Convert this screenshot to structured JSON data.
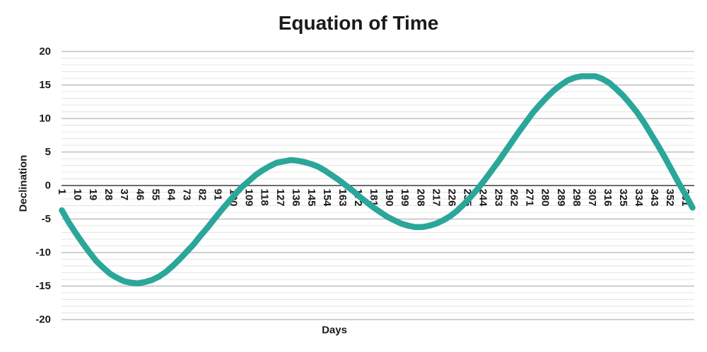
{
  "title": "Equation of Time",
  "colors": {
    "line": "#2BA69A",
    "grid_minor": "#E4E4E4",
    "grid_major": "#B3B3B3",
    "zero_axis": "#3D3D3D",
    "text": "#1A1A1A",
    "background": "#FFFFFF"
  },
  "chart_data": {
    "type": "line",
    "title": "Equation of Time",
    "xlabel": "Days",
    "ylabel": "Declination",
    "xlim": [
      1,
      365
    ],
    "ylim": [
      -20,
      20
    ],
    "y_major_step": 5,
    "y_minor_step": 1,
    "grid": "horizontal-only",
    "legend": "none",
    "xticks": [
      1,
      10,
      19,
      28,
      37,
      46,
      55,
      64,
      73,
      82,
      91,
      100,
      109,
      118,
      127,
      136,
      145,
      154,
      163,
      172,
      181,
      190,
      199,
      208,
      217,
      226,
      235,
      244,
      253,
      262,
      271,
      280,
      289,
      298,
      307,
      316,
      325,
      334,
      343,
      352,
      361
    ],
    "yticks": [
      20,
      15,
      10,
      5,
      0,
      -5,
      -10,
      -15,
      -20
    ],
    "x": [
      1,
      5,
      9,
      13,
      17,
      21,
      25,
      29,
      33,
      37,
      41,
      45,
      49,
      53,
      57,
      61,
      65,
      69,
      73,
      77,
      81,
      85,
      89,
      93,
      97,
      101,
      105,
      109,
      113,
      117,
      121,
      125,
      129,
      133,
      137,
      141,
      145,
      149,
      153,
      157,
      161,
      165,
      169,
      173,
      177,
      181,
      185,
      189,
      193,
      197,
      201,
      205,
      209,
      213,
      217,
      221,
      225,
      229,
      233,
      237,
      241,
      245,
      249,
      253,
      257,
      261,
      265,
      269,
      273,
      277,
      281,
      285,
      289,
      293,
      297,
      301,
      305,
      309,
      313,
      317,
      321,
      325,
      329,
      333,
      337,
      341,
      345,
      349,
      353,
      357,
      361,
      365
    ],
    "series": [
      {
        "name": "Equation of Time",
        "values": [
          -3.7,
          -5.5,
          -7.1,
          -8.6,
          -10.0,
          -11.3,
          -12.3,
          -13.2,
          -13.8,
          -14.3,
          -14.5,
          -14.6,
          -14.4,
          -14.1,
          -13.6,
          -12.9,
          -12.0,
          -11.0,
          -9.9,
          -8.8,
          -7.5,
          -6.3,
          -5.0,
          -3.7,
          -2.5,
          -1.3,
          -0.2,
          0.7,
          1.6,
          2.3,
          2.9,
          3.4,
          3.6,
          3.8,
          3.7,
          3.5,
          3.2,
          2.8,
          2.2,
          1.5,
          0.8,
          0.0,
          -0.8,
          -1.7,
          -2.5,
          -3.3,
          -4.0,
          -4.7,
          -5.2,
          -5.7,
          -6.0,
          -6.2,
          -6.2,
          -6.0,
          -5.7,
          -5.2,
          -4.6,
          -3.8,
          -2.8,
          -1.7,
          -0.5,
          0.8,
          2.2,
          3.6,
          5.1,
          6.6,
          8.1,
          9.5,
          10.9,
          12.1,
          13.2,
          14.2,
          15.0,
          15.7,
          16.1,
          16.3,
          16.3,
          16.3,
          15.9,
          15.3,
          14.4,
          13.4,
          12.2,
          10.9,
          9.4,
          7.7,
          6.0,
          4.2,
          2.3,
          0.4,
          -1.4,
          -3.3
        ]
      }
    ]
  }
}
